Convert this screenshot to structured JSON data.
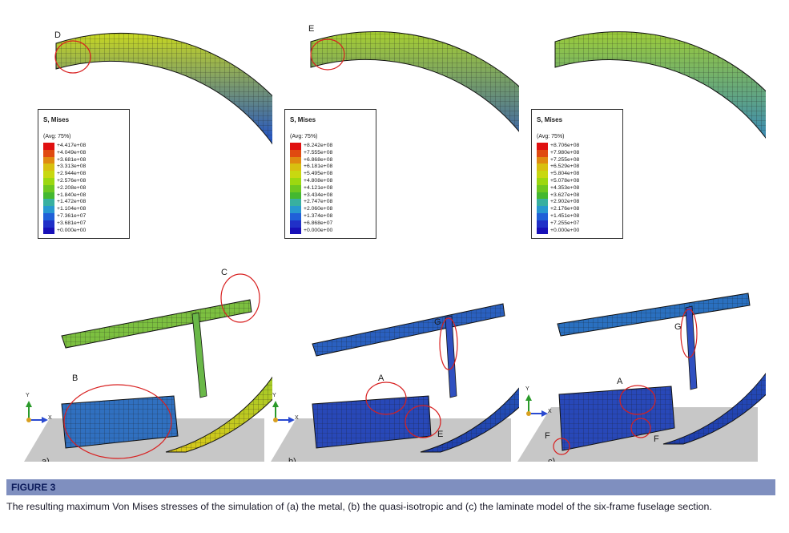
{
  "figure": {
    "label": "FIGURE 3",
    "caption": "The resulting maximum Von Mises stresses of the simulation of (a) the metal, (b) the quasi-isotropic and (c) the laminate model of the six-frame fuselage section."
  },
  "legend_colors": [
    "#e01010",
    "#e04a10",
    "#e08a10",
    "#d8c010",
    "#c8d810",
    "#9cd810",
    "#6ec820",
    "#44b830",
    "#38b0a0",
    "#2898d0",
    "#2060d8",
    "#2030c8",
    "#1810b8"
  ],
  "panels": [
    {
      "sublabel": "a)",
      "legend": {
        "title": "S, Mises",
        "avg": "(Avg: 75%)",
        "values": [
          "+4.417e+08",
          "+4.049e+08",
          "+3.681e+08",
          "+3.313e+08",
          "+2.944e+08",
          "+2.576e+08",
          "+2.208e+08",
          "+1.840e+08",
          "+1.472e+08",
          "+1.104e+08",
          "+7.361e+07",
          "+3.681e+07",
          "+0.000e+00"
        ]
      },
      "axis": {
        "y": "Y",
        "x": "X"
      },
      "markers": [
        "D",
        "C",
        "B"
      ]
    },
    {
      "sublabel": "b)",
      "legend": {
        "title": "S, Mises",
        "avg": "(Avg: 75%)",
        "values": [
          "+8.242e+08",
          "+7.555e+08",
          "+6.868e+08",
          "+6.181e+08",
          "+5.495e+08",
          "+4.808e+08",
          "+4.121e+08",
          "+3.434e+08",
          "+2.747e+08",
          "+2.060e+08",
          "+1.374e+08",
          "+6.868e+07",
          "+0.000e+00"
        ]
      },
      "axis": {
        "y": "Y",
        "x": "X"
      },
      "markers": [
        "E",
        "G",
        "A",
        "E"
      ]
    },
    {
      "sublabel": "c)",
      "legend": {
        "title": "S, Mises",
        "avg": "(Avg: 75%)",
        "values": [
          "+8.706e+08",
          "+7.980e+08",
          "+7.255e+08",
          "+6.529e+08",
          "+5.804e+08",
          "+5.078e+08",
          "+4.353e+08",
          "+3.627e+08",
          "+2.902e+08",
          "+2.176e+08",
          "+1.451e+08",
          "+7.255e+07",
          "+0.000e+00"
        ]
      },
      "axis": {
        "y": "Y",
        "x": "X"
      },
      "markers": [
        "G",
        "A",
        "F",
        "F"
      ]
    }
  ]
}
